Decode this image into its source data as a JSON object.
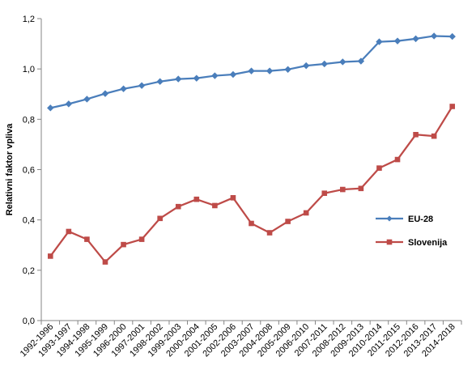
{
  "chart_data": {
    "type": "line",
    "title": "",
    "xlabel": "",
    "ylabel": "Relativni faktor vpliva",
    "ylim": [
      0,
      1.2
    ],
    "yticks": [
      0,
      0.2,
      0.4,
      0.6,
      0.8,
      1.0,
      1.2
    ],
    "ytick_labels": [
      "0,0",
      "0,2",
      "0,4",
      "0,6",
      "0,8",
      "1,0",
      "1,2"
    ],
    "grid": false,
    "legend_position": "right",
    "categories": [
      "1992-1996",
      "1993-1997",
      "1994-1998",
      "1995-1999",
      "1996-2000",
      "1997-2001",
      "1998-2002",
      "1999-2003",
      "2000-2004",
      "2001-2005",
      "2002-2006",
      "2003-2007",
      "2004-2008",
      "2005-2009",
      "2006-2010",
      "2007-2011",
      "2008-2012",
      "2009-2013",
      "2010-2014",
      "2011-2015",
      "2012-2016",
      "2013-2017",
      "2014-2018"
    ],
    "series": [
      {
        "name": "EU-28",
        "color": "#4a7ebb",
        "marker": "diamond",
        "values": [
          0.845,
          0.861,
          0.88,
          0.902,
          0.921,
          0.934,
          0.95,
          0.96,
          0.963,
          0.973,
          0.978,
          0.992,
          0.992,
          0.998,
          1.013,
          1.02,
          1.028,
          1.031,
          1.108,
          1.111,
          1.12,
          1.131,
          1.129
        ]
      },
      {
        "name": "Slovenija",
        "color": "#be4b48",
        "marker": "square",
        "values": [
          0.256,
          0.354,
          0.323,
          0.233,
          0.302,
          0.323,
          0.406,
          0.453,
          0.482,
          0.457,
          0.488,
          0.386,
          0.349,
          0.394,
          0.428,
          0.506,
          0.521,
          0.525,
          0.606,
          0.64,
          0.739,
          0.733,
          0.851
        ]
      }
    ]
  }
}
